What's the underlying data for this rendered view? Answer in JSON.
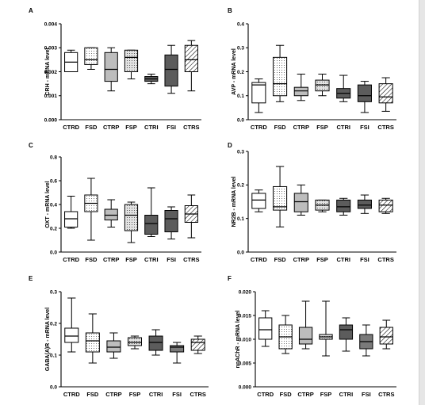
{
  "colors": {
    "white": "#ffffff",
    "dotted": "#eeeeee",
    "light_gray": "#bdbdbd",
    "dotted_light": "#d9d9d9",
    "dark_gray": "#5c5c5c",
    "mid_gray": "#7a7a7a",
    "hatched": "#ffffff"
  },
  "chart_data": [
    {
      "id": "A",
      "type": "box",
      "letter": "A",
      "ylabel": "CRH - mRNA level",
      "ylim": [
        0,
        0.004
      ],
      "yticks": [
        0,
        0.001,
        0.002,
        0.003,
        0.004
      ],
      "ytick_labels": [
        "0.000",
        "0.001",
        "0.002",
        "0.003",
        "0.004"
      ],
      "categories": [
        "CTRD",
        "FSD",
        "CTRP",
        "FSP",
        "CTRI",
        "FSI",
        "CTRS"
      ],
      "fills": [
        "white",
        "dotted",
        "light_gray",
        "dotted_light",
        "dark_gray",
        "dark_gray",
        "hatched"
      ],
      "boxes": [
        {
          "min": 0.002,
          "q1": 0.002,
          "median": 0.0024,
          "q3": 0.0028,
          "max": 0.0029
        },
        {
          "min": 0.0021,
          "q1": 0.0023,
          "median": 0.0025,
          "q3": 0.003,
          "max": 0.003
        },
        {
          "min": 0.0012,
          "q1": 0.0016,
          "median": 0.0021,
          "q3": 0.0028,
          "max": 0.003
        },
        {
          "min": 0.0017,
          "q1": 0.002,
          "median": 0.0026,
          "q3": 0.0029,
          "max": 0.0029
        },
        {
          "min": 0.0015,
          "q1": 0.0016,
          "median": 0.0017,
          "q3": 0.0018,
          "max": 0.0019
        },
        {
          "min": 0.0011,
          "q1": 0.0014,
          "median": 0.0021,
          "q3": 0.0027,
          "max": 0.0031
        },
        {
          "min": 0.0012,
          "q1": 0.002,
          "median": 0.0025,
          "q3": 0.0031,
          "max": 0.0033
        }
      ]
    },
    {
      "id": "B",
      "type": "box",
      "letter": "B",
      "ylabel": "AVP - mRNA level",
      "ylim": [
        0,
        0.4
      ],
      "yticks": [
        0,
        0.1,
        0.2,
        0.3,
        0.4
      ],
      "ytick_labels": [
        "0.0",
        "0.1",
        "0.2",
        "0.3",
        "0.4"
      ],
      "categories": [
        "CTRD",
        "FSD",
        "CTRP",
        "FSP",
        "CTRI",
        "FSI",
        "CTRS"
      ],
      "fills": [
        "white",
        "dotted",
        "light_gray",
        "dotted_light",
        "dark_gray",
        "dark_gray",
        "hatched"
      ],
      "boxes": [
        {
          "min": 0.03,
          "q1": 0.07,
          "median": 0.145,
          "q3": 0.155,
          "max": 0.17
        },
        {
          "min": 0.075,
          "q1": 0.1,
          "median": 0.15,
          "q3": 0.26,
          "max": 0.31
        },
        {
          "min": 0.08,
          "q1": 0.1,
          "median": 0.12,
          "q3": 0.135,
          "max": 0.19
        },
        {
          "min": 0.1,
          "q1": 0.12,
          "median": 0.145,
          "q3": 0.165,
          "max": 0.19
        },
        {
          "min": 0.075,
          "q1": 0.09,
          "median": 0.11,
          "q3": 0.13,
          "max": 0.185
        },
        {
          "min": 0.03,
          "q1": 0.075,
          "median": 0.1,
          "q3": 0.145,
          "max": 0.16
        },
        {
          "min": 0.035,
          "q1": 0.07,
          "median": 0.095,
          "q3": 0.15,
          "max": 0.175
        }
      ]
    },
    {
      "id": "C",
      "type": "box",
      "letter": "C",
      "ylabel": "OXT - mRNA level",
      "ylim": [
        0,
        0.8
      ],
      "yticks": [
        0,
        0.2,
        0.4,
        0.6,
        0.8
      ],
      "ytick_labels": [
        "0.0",
        "0.2",
        "0.4",
        "0.6",
        "0.8"
      ],
      "categories": [
        "CTRD",
        "FSD",
        "CTRP",
        "FSP",
        "CTRI",
        "FSI",
        "CTRS"
      ],
      "fills": [
        "white",
        "dotted",
        "light_gray",
        "dotted_light",
        "dark_gray",
        "dark_gray",
        "hatched"
      ],
      "boxes": [
        {
          "min": 0.2,
          "q1": 0.21,
          "median": 0.28,
          "q3": 0.34,
          "max": 0.47
        },
        {
          "min": 0.1,
          "q1": 0.34,
          "median": 0.41,
          "q3": 0.48,
          "max": 0.62
        },
        {
          "min": 0.21,
          "q1": 0.27,
          "median": 0.31,
          "q3": 0.36,
          "max": 0.44
        },
        {
          "min": 0.08,
          "q1": 0.18,
          "median": 0.31,
          "q3": 0.4,
          "max": 0.42
        },
        {
          "min": 0.13,
          "q1": 0.15,
          "median": 0.24,
          "q3": 0.31,
          "max": 0.54
        },
        {
          "min": 0.11,
          "q1": 0.17,
          "median": 0.28,
          "q3": 0.35,
          "max": 0.38
        },
        {
          "min": 0.12,
          "q1": 0.25,
          "median": 0.32,
          "q3": 0.39,
          "max": 0.48
        }
      ]
    },
    {
      "id": "D",
      "type": "box",
      "letter": "D",
      "ylabel": "NR2B - mRNA level",
      "ylim": [
        0,
        0.3
      ],
      "yticks": [
        0,
        0.1,
        0.2,
        0.3
      ],
      "ytick_labels": [
        "0.0",
        "0.1",
        "0.2",
        "0.3"
      ],
      "categories": [
        "CTRD",
        "FSD",
        "CTRP",
        "FSP",
        "CTRI",
        "FSI",
        "CTRS"
      ],
      "fills": [
        "white",
        "dotted",
        "light_gray",
        "dotted_light",
        "dark_gray",
        "dark_gray",
        "hatched"
      ],
      "boxes": [
        {
          "min": 0.12,
          "q1": 0.13,
          "median": 0.155,
          "q3": 0.175,
          "max": 0.185
        },
        {
          "min": 0.075,
          "q1": 0.125,
          "median": 0.135,
          "q3": 0.195,
          "max": 0.255
        },
        {
          "min": 0.11,
          "q1": 0.12,
          "median": 0.15,
          "q3": 0.175,
          "max": 0.2
        },
        {
          "min": 0.12,
          "q1": 0.125,
          "median": 0.14,
          "q3": 0.155,
          "max": 0.155
        },
        {
          "min": 0.11,
          "q1": 0.12,
          "median": 0.135,
          "q3": 0.155,
          "max": 0.16
        },
        {
          "min": 0.115,
          "q1": 0.13,
          "median": 0.14,
          "q3": 0.155,
          "max": 0.17
        },
        {
          "min": 0.115,
          "q1": 0.12,
          "median": 0.14,
          "q3": 0.155,
          "max": 0.16
        }
      ]
    },
    {
      "id": "E",
      "type": "box",
      "letter": "E",
      "ylabel": "GABA(A)R - mRNA level",
      "ylim": [
        0,
        0.3
      ],
      "yticks": [
        0,
        0.1,
        0.2,
        0.3
      ],
      "ytick_labels": [
        "0.0",
        "0.1",
        "0.2",
        "0.3"
      ],
      "categories": [
        "CTRD",
        "FSD",
        "CTRP",
        "FSP",
        "CTRI",
        "FSI",
        "CTRS"
      ],
      "fills": [
        "white",
        "dotted",
        "light_gray",
        "dotted_light",
        "dark_gray",
        "mid_gray",
        "hatched"
      ],
      "boxes": [
        {
          "min": 0.11,
          "q1": 0.14,
          "median": 0.16,
          "q3": 0.185,
          "max": 0.28
        },
        {
          "min": 0.075,
          "q1": 0.11,
          "median": 0.145,
          "q3": 0.17,
          "max": 0.23
        },
        {
          "min": 0.09,
          "q1": 0.11,
          "median": 0.125,
          "q3": 0.145,
          "max": 0.17
        },
        {
          "min": 0.12,
          "q1": 0.13,
          "median": 0.14,
          "q3": 0.155,
          "max": 0.16
        },
        {
          "min": 0.1,
          "q1": 0.115,
          "median": 0.14,
          "q3": 0.16,
          "max": 0.18
        },
        {
          "min": 0.075,
          "q1": 0.11,
          "median": 0.125,
          "q3": 0.13,
          "max": 0.14
        },
        {
          "min": 0.105,
          "q1": 0.115,
          "median": 0.14,
          "q3": 0.15,
          "max": 0.16
        }
      ]
    },
    {
      "id": "F",
      "type": "box",
      "letter": "F",
      "ylabel": "nnAChR - mRNA level",
      "ylim": [
        0,
        0.02
      ],
      "yticks": [
        0,
        0.005,
        0.01,
        0.015,
        0.02
      ],
      "ytick_labels": [
        "0.000",
        "0.005",
        "0.010",
        "0.015",
        "0.020"
      ],
      "categories": [
        "CTRD",
        "FSD",
        "CTRP",
        "FSP",
        "CTRI",
        "FSI",
        "CTRS"
      ],
      "fills": [
        "white",
        "dotted",
        "light_gray",
        "dotted_light",
        "dark_gray",
        "mid_gray",
        "hatched"
      ],
      "boxes": [
        {
          "min": 0.0085,
          "q1": 0.01,
          "median": 0.012,
          "q3": 0.0145,
          "max": 0.016
        },
        {
          "min": 0.007,
          "q1": 0.008,
          "median": 0.0105,
          "q3": 0.013,
          "max": 0.015
        },
        {
          "min": 0.008,
          "q1": 0.009,
          "median": 0.01,
          "q3": 0.0125,
          "max": 0.018
        },
        {
          "min": 0.0065,
          "q1": 0.01,
          "median": 0.0105,
          "q3": 0.011,
          "max": 0.018
        },
        {
          "min": 0.0075,
          "q1": 0.01,
          "median": 0.012,
          "q3": 0.013,
          "max": 0.0145
        },
        {
          "min": 0.0065,
          "q1": 0.008,
          "median": 0.0095,
          "q3": 0.011,
          "max": 0.013
        },
        {
          "min": 0.008,
          "q1": 0.009,
          "median": 0.0105,
          "q3": 0.0125,
          "max": 0.014
        }
      ]
    }
  ]
}
